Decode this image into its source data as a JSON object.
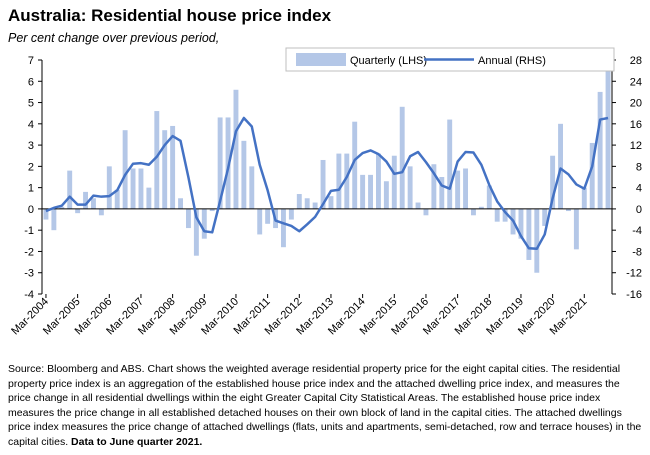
{
  "chart_data": {
    "type": "bar+line",
    "title": "Australia: Residential house price index",
    "subtitle": "Per cent change over previous period,",
    "x_tick_labels": [
      "Mar-2004",
      "Mar-2005",
      "Mar-2006",
      "Mar-2007",
      "Mar-2008",
      "Mar-2009",
      "Mar-2010",
      "Mar-2011",
      "Mar-2012",
      "Mar-2013",
      "Mar-2014",
      "Mar-2015",
      "Mar-2016",
      "Mar-2017",
      "Mar-2018",
      "Mar-2019",
      "Mar-2020",
      "Mar-2021"
    ],
    "quarters_start": "Mar-2004",
    "quarters_end": "Jun-2021",
    "left_axis": {
      "min": -4,
      "max": 7,
      "step": 1,
      "ticks": [
        -4,
        -3,
        -2,
        -1,
        0,
        1,
        2,
        3,
        4,
        5,
        6,
        7
      ]
    },
    "right_axis": {
      "min": -16,
      "max": 28,
      "step": 4,
      "ticks": [
        -16,
        -12,
        -8,
        -4,
        0,
        4,
        8,
        12,
        16,
        20,
        24,
        28
      ]
    },
    "legend_position": "top-right",
    "series": [
      {
        "name": "Quarterly (LHS)",
        "type": "bar",
        "axis": "left",
        "color": "#b4c7e7",
        "values": [
          -0.5,
          -1.0,
          0.1,
          1.8,
          -0.2,
          0.8,
          0.5,
          -0.3,
          2.0,
          0.9,
          3.7,
          1.9,
          1.9,
          1.0,
          4.6,
          3.7,
          3.9,
          0.5,
          -0.9,
          -2.2,
          -1.4,
          -0.1,
          4.3,
          4.3,
          5.6,
          3.2,
          2.0,
          -1.2,
          -0.7,
          -0.9,
          -1.8,
          -0.5,
          0.7,
          0.5,
          0.3,
          2.3,
          0.6,
          2.6,
          2.6,
          4.1,
          1.6,
          1.6,
          2.6,
          1.3,
          2.5,
          4.8,
          2.0,
          0.3,
          -0.3,
          2.1,
          1.5,
          4.2,
          1.8,
          1.9,
          -0.3,
          0.1,
          1.1,
          -0.6,
          -0.6,
          -1.2,
          -1.4,
          -2.4,
          -3.0,
          -0.8,
          2.5,
          4.0,
          -0.1,
          -1.9,
          1.0,
          3.1,
          5.5,
          6.8
        ]
      },
      {
        "name": "Annual (RHS)",
        "type": "line",
        "axis": "right",
        "color": "#4472c4",
        "values": [
          -0.4,
          0.2,
          0.6,
          2.3,
          0.8,
          0.8,
          2.5,
          2.3,
          2.4,
          3.5,
          6.4,
          8.5,
          8.6,
          8.3,
          9.8,
          12.0,
          13.7,
          12.8,
          5.9,
          -1.6,
          -4.2,
          -4.4,
          1.5,
          7.6,
          14.6,
          17.1,
          15.5,
          8.3,
          3.5,
          -2.2,
          -2.7,
          -3.2,
          -4.2,
          -2.9,
          -1.5,
          0.9,
          3.4,
          3.6,
          6.0,
          9.2,
          10.5,
          11.0,
          10.3,
          8.9,
          6.6,
          6.9,
          9.9,
          10.7,
          8.8,
          6.7,
          4.4,
          3.8,
          8.9,
          10.7,
          10.6,
          8.3,
          4.5,
          1.4,
          -0.6,
          -2.2,
          -5.1,
          -7.4,
          -7.5,
          -4.8,
          2.0,
          7.6,
          6.5,
          4.6,
          3.8,
          8.0,
          16.8,
          17.1
        ]
      }
    ]
  },
  "source": {
    "text": "Source: Bloomberg and ABS. Chart shows the weighted average residential property price for the eight capital cities.  The residential property price index is an aggregation of the established house price index and the attached dwelling price index, and measures the price change in all residential dwellings within the eight Greater Capital City Statistical Areas.  The established house price index measures the price change in all established detached houses on their own block of land in the capital cities. The attached dwellings price index measures the price change of attached dwellings (flats, units and apartments, semi-detached, row and terrace houses) in the capital cities.",
    "bold_note": "Data to June quarter 2021."
  }
}
